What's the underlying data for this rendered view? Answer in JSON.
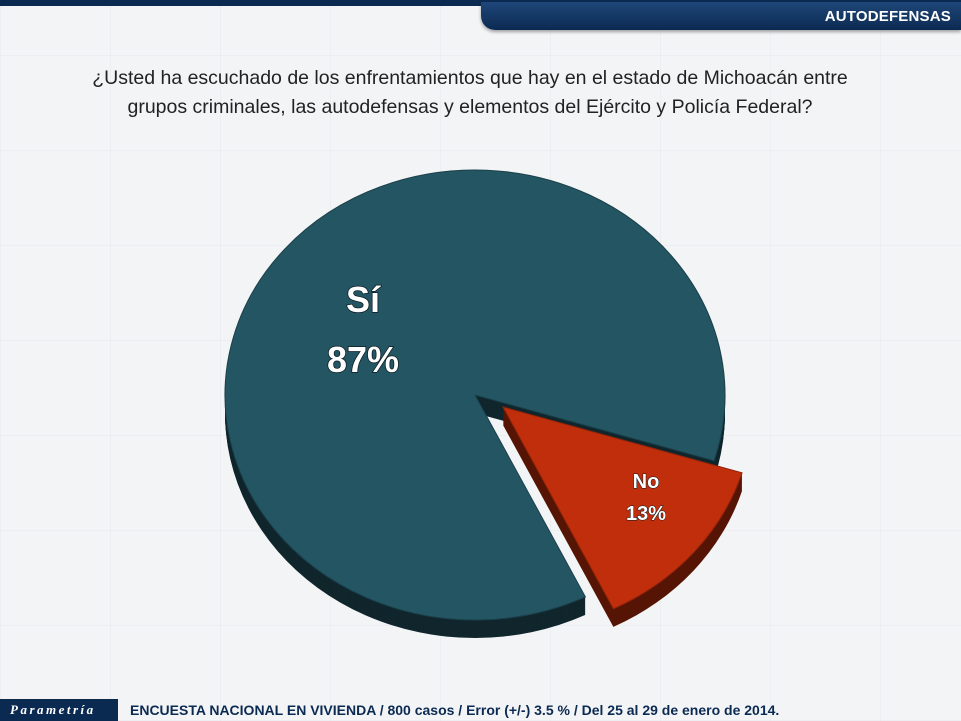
{
  "header": {
    "section": "AUTODEFENSAS"
  },
  "question": "¿Usted ha escuchado de los enfrentamientos que hay en el estado de Michoacán entre grupos criminales, las autodefensas y elementos del Ejército y Policía Federal?",
  "chart_data": {
    "type": "pie",
    "title": "",
    "slices": [
      {
        "label": "Sí",
        "value": 87,
        "value_label": "87%",
        "color": "#235562",
        "exploded": false
      },
      {
        "label": "No",
        "value": 13,
        "value_label": "13%",
        "color": "#c02e0c",
        "exploded": true
      }
    ]
  },
  "footer": {
    "brand": "Parametría",
    "note": "ENCUESTA NACIONAL EN VIVIENDA / 800 casos / Error (+/-) 3.5 % / Del 25 al 29 de enero de 2014."
  },
  "colors": {
    "navy": "#0b2a52",
    "teal": "#235562",
    "red": "#c02e0c"
  }
}
